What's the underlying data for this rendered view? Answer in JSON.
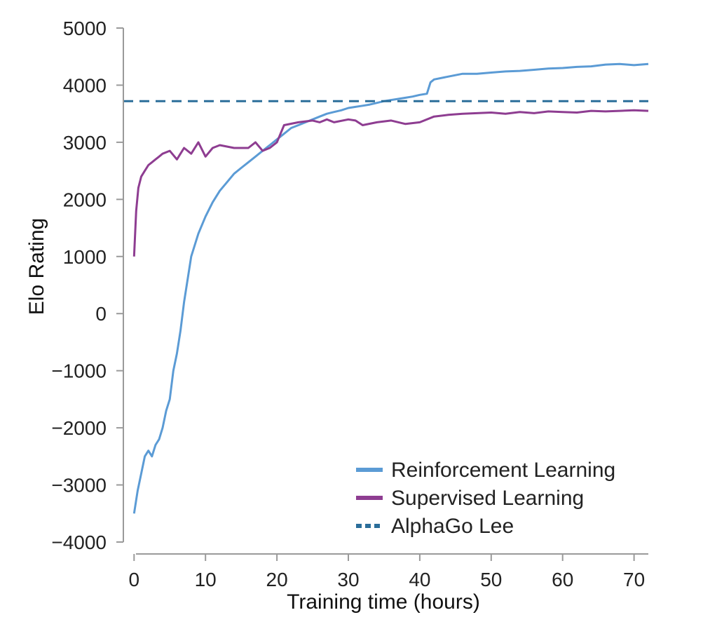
{
  "chart_data": {
    "type": "line",
    "title": "",
    "xlabel": "Training time (hours)",
    "ylabel": "Elo Rating",
    "xlim": [
      -1.5,
      72
    ],
    "ylim": [
      -4000,
      5000
    ],
    "xticks": [
      0,
      10,
      20,
      30,
      40,
      50,
      60,
      70
    ],
    "yticks": [
      -4000,
      -3000,
      -2000,
      -1000,
      0,
      1000,
      2000,
      3000,
      4000,
      5000
    ],
    "xtick_labels": [
      "0",
      "10",
      "20",
      "30",
      "40",
      "50",
      "60",
      "70"
    ],
    "ytick_labels": [
      "−4000",
      "−3000",
      "−2000",
      "−1000",
      "0",
      "1000",
      "2000",
      "3000",
      "4000",
      "5000"
    ],
    "grid": false,
    "legend_position": "bottom-right",
    "series": [
      {
        "name": "Reinforcement Learning",
        "color": "#5b9bd5",
        "style": "solid",
        "x": [
          0,
          0.5,
          1,
          1.5,
          2,
          2.5,
          3,
          3.5,
          4,
          4.5,
          5,
          5.5,
          6,
          6.5,
          7,
          7.5,
          8,
          9,
          10,
          11,
          12,
          13,
          14,
          15,
          16,
          17,
          18,
          19,
          20,
          21,
          22,
          23,
          24,
          25,
          26,
          27,
          28,
          29,
          30,
          31,
          32,
          33,
          34,
          35,
          36,
          37,
          38,
          39,
          40,
          41,
          41.5,
          42,
          44,
          46,
          48,
          50,
          52,
          54,
          56,
          58,
          60,
          62,
          64,
          66,
          68,
          70,
          72
        ],
        "y": [
          -3500,
          -3100,
          -2800,
          -2500,
          -2400,
          -2500,
          -2300,
          -2200,
          -2000,
          -1700,
          -1500,
          -1000,
          -700,
          -300,
          200,
          600,
          1000,
          1400,
          1700,
          1950,
          2150,
          2300,
          2450,
          2550,
          2650,
          2750,
          2850,
          2950,
          3050,
          3150,
          3250,
          3300,
          3350,
          3400,
          3450,
          3500,
          3530,
          3560,
          3600,
          3620,
          3640,
          3660,
          3690,
          3720,
          3740,
          3760,
          3780,
          3800,
          3830,
          3850,
          4050,
          4100,
          4150,
          4200,
          4200,
          4220,
          4240,
          4250,
          4270,
          4290,
          4300,
          4320,
          4330,
          4360,
          4370,
          4350,
          4370
        ]
      },
      {
        "name": "Supervised Learning",
        "color": "#8e3d91",
        "style": "solid",
        "x": [
          0,
          0.3,
          0.6,
          1,
          1.5,
          2,
          2.5,
          3,
          3.5,
          4,
          5,
          6,
          7,
          8,
          9,
          10,
          11,
          12,
          14,
          16,
          17,
          18,
          19,
          20,
          21,
          23,
          25,
          26,
          27,
          28,
          30,
          31,
          32,
          34,
          36,
          38,
          40,
          42,
          44,
          46,
          48,
          50,
          52,
          54,
          56,
          58,
          60,
          62,
          64,
          66,
          68,
          70,
          72
        ],
        "y": [
          1000,
          1800,
          2200,
          2400,
          2500,
          2600,
          2650,
          2700,
          2750,
          2800,
          2850,
          2700,
          2900,
          2800,
          3000,
          2750,
          2900,
          2950,
          2900,
          2900,
          3000,
          2850,
          2900,
          3000,
          3300,
          3350,
          3380,
          3350,
          3400,
          3350,
          3400,
          3380,
          3300,
          3350,
          3380,
          3320,
          3350,
          3450,
          3480,
          3500,
          3510,
          3520,
          3500,
          3530,
          3510,
          3540,
          3530,
          3520,
          3550,
          3540,
          3550,
          3560,
          3550
        ]
      },
      {
        "name": "AlphaGo Lee",
        "color": "#2b6e9a",
        "style": "dashed",
        "x": [
          -1.5,
          72
        ],
        "y": [
          3720,
          3720
        ]
      }
    ]
  }
}
